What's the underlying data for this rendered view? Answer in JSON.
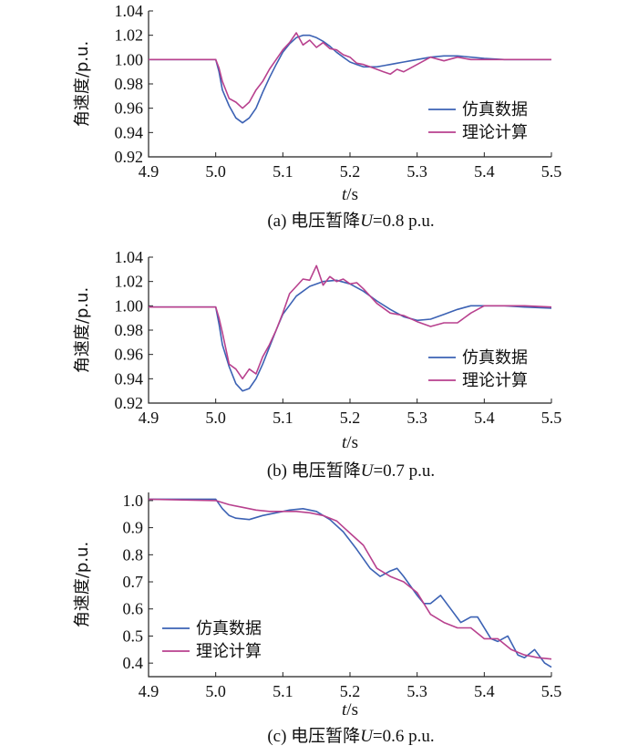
{
  "chart_data": [
    {
      "type": "line",
      "caption_prefix": "(a)  电压暂降",
      "caption_var": "U",
      "caption_suffix": "=0.8 p.u.",
      "xlabel_var": "t",
      "xlabel_unit": "/s",
      "ylabel": "角速度/p.u.",
      "xlim": [
        4.9,
        5.5
      ],
      "ylim": [
        0.92,
        1.04
      ],
      "xticks": [
        "4.9",
        "5.0",
        "5.1",
        "5.2",
        "5.3",
        "5.4",
        "5.5"
      ],
      "yticks": [
        "0.92",
        "0.94",
        "0.96",
        "0.98",
        "1.00",
        "1.02",
        "1.04"
      ],
      "legend_position": "lower-right",
      "series": [
        {
          "name": "仿真数据",
          "color": "#3c62b4",
          "x": [
            4.9,
            5.0,
            5.005,
            5.01,
            5.02,
            5.03,
            5.04,
            5.05,
            5.06,
            5.07,
            5.08,
            5.09,
            5.1,
            5.11,
            5.12,
            5.13,
            5.14,
            5.15,
            5.16,
            5.17,
            5.18,
            5.19,
            5.2,
            5.21,
            5.22,
            5.23,
            5.24,
            5.25,
            5.26,
            5.27,
            5.28,
            5.29,
            5.3,
            5.32,
            5.34,
            5.36,
            5.38,
            5.4,
            5.43,
            5.46,
            5.5
          ],
          "y": [
            1.0,
            1.0,
            0.99,
            0.975,
            0.962,
            0.952,
            0.948,
            0.952,
            0.96,
            0.973,
            0.985,
            0.996,
            1.006,
            1.013,
            1.018,
            1.02,
            1.02,
            1.018,
            1.015,
            1.011,
            1.006,
            1.002,
            0.998,
            0.996,
            0.994,
            0.994,
            0.994,
            0.995,
            0.996,
            0.997,
            0.998,
            0.999,
            1.0,
            1.002,
            1.003,
            1.003,
            1.002,
            1.001,
            1.0,
            1.0,
            1.0
          ]
        },
        {
          "name": "理论计算",
          "color": "#b8418e",
          "x": [
            4.9,
            5.0,
            5.005,
            5.01,
            5.02,
            5.03,
            5.04,
            5.05,
            5.06,
            5.07,
            5.08,
            5.09,
            5.1,
            5.11,
            5.12,
            5.13,
            5.14,
            5.15,
            5.16,
            5.17,
            5.18,
            5.19,
            5.2,
            5.21,
            5.22,
            5.23,
            5.24,
            5.25,
            5.26,
            5.27,
            5.28,
            5.3,
            5.32,
            5.34,
            5.36,
            5.38,
            5.4,
            5.43,
            5.46,
            5.5
          ],
          "y": [
            1.0,
            1.0,
            0.993,
            0.982,
            0.968,
            0.965,
            0.96,
            0.965,
            0.975,
            0.982,
            0.992,
            1.0,
            1.008,
            1.014,
            1.022,
            1.012,
            1.016,
            1.01,
            1.014,
            1.009,
            1.008,
            1.004,
            1.002,
            0.997,
            0.996,
            0.994,
            0.992,
            0.99,
            0.988,
            0.992,
            0.99,
            0.996,
            1.002,
            0.999,
            1.002,
            1.0,
            1.0,
            1.0,
            1.0,
            1.0
          ]
        }
      ]
    },
    {
      "type": "line",
      "caption_prefix": "(b)  电压暂降",
      "caption_var": "U",
      "caption_suffix": "=0.7 p.u.",
      "xlabel_var": "t",
      "xlabel_unit": "/s",
      "ylabel": "角速度/p.u.",
      "xlim": [
        4.9,
        5.5
      ],
      "ylim": [
        0.92,
        1.04
      ],
      "xticks": [
        "4.9",
        "5.0",
        "5.1",
        "5.2",
        "5.3",
        "5.4",
        "5.5"
      ],
      "yticks": [
        "0.92",
        "0.94",
        "0.96",
        "0.98",
        "1.00",
        "1.02",
        "1.04"
      ],
      "legend_position": "lower-right",
      "series": [
        {
          "name": "仿真数据",
          "color": "#3c62b4",
          "x": [
            4.9,
            5.0,
            5.005,
            5.01,
            5.02,
            5.03,
            5.04,
            5.05,
            5.06,
            5.07,
            5.08,
            5.09,
            5.1,
            5.12,
            5.14,
            5.16,
            5.18,
            5.2,
            5.22,
            5.24,
            5.26,
            5.28,
            5.3,
            5.32,
            5.34,
            5.36,
            5.38,
            5.4,
            5.43,
            5.46,
            5.5
          ],
          "y": [
            0.999,
            0.999,
            0.985,
            0.968,
            0.95,
            0.936,
            0.93,
            0.932,
            0.94,
            0.952,
            0.966,
            0.98,
            0.993,
            1.008,
            1.016,
            1.02,
            1.021,
            1.018,
            1.012,
            1.004,
            0.997,
            0.991,
            0.988,
            0.989,
            0.993,
            0.997,
            1.0,
            1.0,
            1.0,
            0.999,
            0.998
          ]
        },
        {
          "name": "理论计算",
          "color": "#b8418e",
          "x": [
            4.9,
            5.0,
            5.005,
            5.01,
            5.02,
            5.03,
            5.04,
            5.05,
            5.06,
            5.07,
            5.08,
            5.09,
            5.1,
            5.11,
            5.12,
            5.13,
            5.14,
            5.15,
            5.16,
            5.17,
            5.18,
            5.19,
            5.2,
            5.21,
            5.22,
            5.24,
            5.26,
            5.28,
            5.3,
            5.32,
            5.34,
            5.36,
            5.38,
            5.4,
            5.43,
            5.46,
            5.5
          ],
          "y": [
            0.999,
            0.999,
            0.99,
            0.978,
            0.952,
            0.948,
            0.94,
            0.948,
            0.944,
            0.958,
            0.968,
            0.98,
            0.994,
            1.01,
            1.016,
            1.022,
            1.021,
            1.033,
            1.017,
            1.024,
            1.02,
            1.022,
            1.018,
            1.019,
            1.014,
            1.002,
            0.994,
            0.992,
            0.987,
            0.983,
            0.986,
            0.986,
            0.994,
            1.0,
            1.0,
            1.0,
            0.999
          ]
        }
      ]
    },
    {
      "type": "line",
      "caption_prefix": "(c)  电压暂降",
      "caption_var": "U",
      "caption_suffix": "=0.6 p.u.",
      "xlabel_var": "t",
      "xlabel_unit": "/s",
      "ylabel": "角速度/p.u.",
      "xlim": [
        4.9,
        5.5
      ],
      "ylim": [
        0.35,
        1.03
      ],
      "xticks": [
        "4.9",
        "5.0",
        "5.1",
        "5.2",
        "5.3",
        "5.4",
        "5.5"
      ],
      "yticks": [
        "0.4",
        "0.5",
        "0.6",
        "0.7",
        "0.8",
        "0.9",
        "1.0"
      ],
      "legend_position": "lower-left",
      "series": [
        {
          "name": "仿真数据",
          "color": "#3c62b4",
          "x": [
            4.9,
            5.0,
            5.01,
            5.02,
            5.03,
            5.05,
            5.07,
            5.09,
            5.11,
            5.13,
            5.15,
            5.17,
            5.19,
            5.21,
            5.23,
            5.245,
            5.26,
            5.27,
            5.28,
            5.3,
            5.31,
            5.32,
            5.335,
            5.35,
            5.365,
            5.38,
            5.39,
            5.41,
            5.42,
            5.435,
            5.45,
            5.46,
            5.475,
            5.49,
            5.5
          ],
          "y": [
            1.005,
            1.005,
            0.97,
            0.945,
            0.935,
            0.93,
            0.945,
            0.955,
            0.965,
            0.97,
            0.96,
            0.93,
            0.885,
            0.82,
            0.75,
            0.72,
            0.74,
            0.75,
            0.72,
            0.65,
            0.62,
            0.62,
            0.65,
            0.6,
            0.55,
            0.57,
            0.57,
            0.49,
            0.48,
            0.5,
            0.43,
            0.42,
            0.45,
            0.4,
            0.385
          ]
        },
        {
          "name": "理论计算",
          "color": "#b8418e",
          "x": [
            4.9,
            5.0,
            5.02,
            5.04,
            5.06,
            5.08,
            5.1,
            5.12,
            5.14,
            5.16,
            5.18,
            5.2,
            5.22,
            5.24,
            5.26,
            5.28,
            5.3,
            5.32,
            5.34,
            5.36,
            5.38,
            5.4,
            5.42,
            5.44,
            5.46,
            5.48,
            5.5
          ],
          "y": [
            1.005,
            1.0,
            0.985,
            0.975,
            0.965,
            0.96,
            0.96,
            0.96,
            0.955,
            0.945,
            0.925,
            0.88,
            0.835,
            0.75,
            0.72,
            0.7,
            0.66,
            0.58,
            0.55,
            0.53,
            0.53,
            0.49,
            0.49,
            0.45,
            0.43,
            0.42,
            0.415
          ]
        }
      ]
    }
  ]
}
